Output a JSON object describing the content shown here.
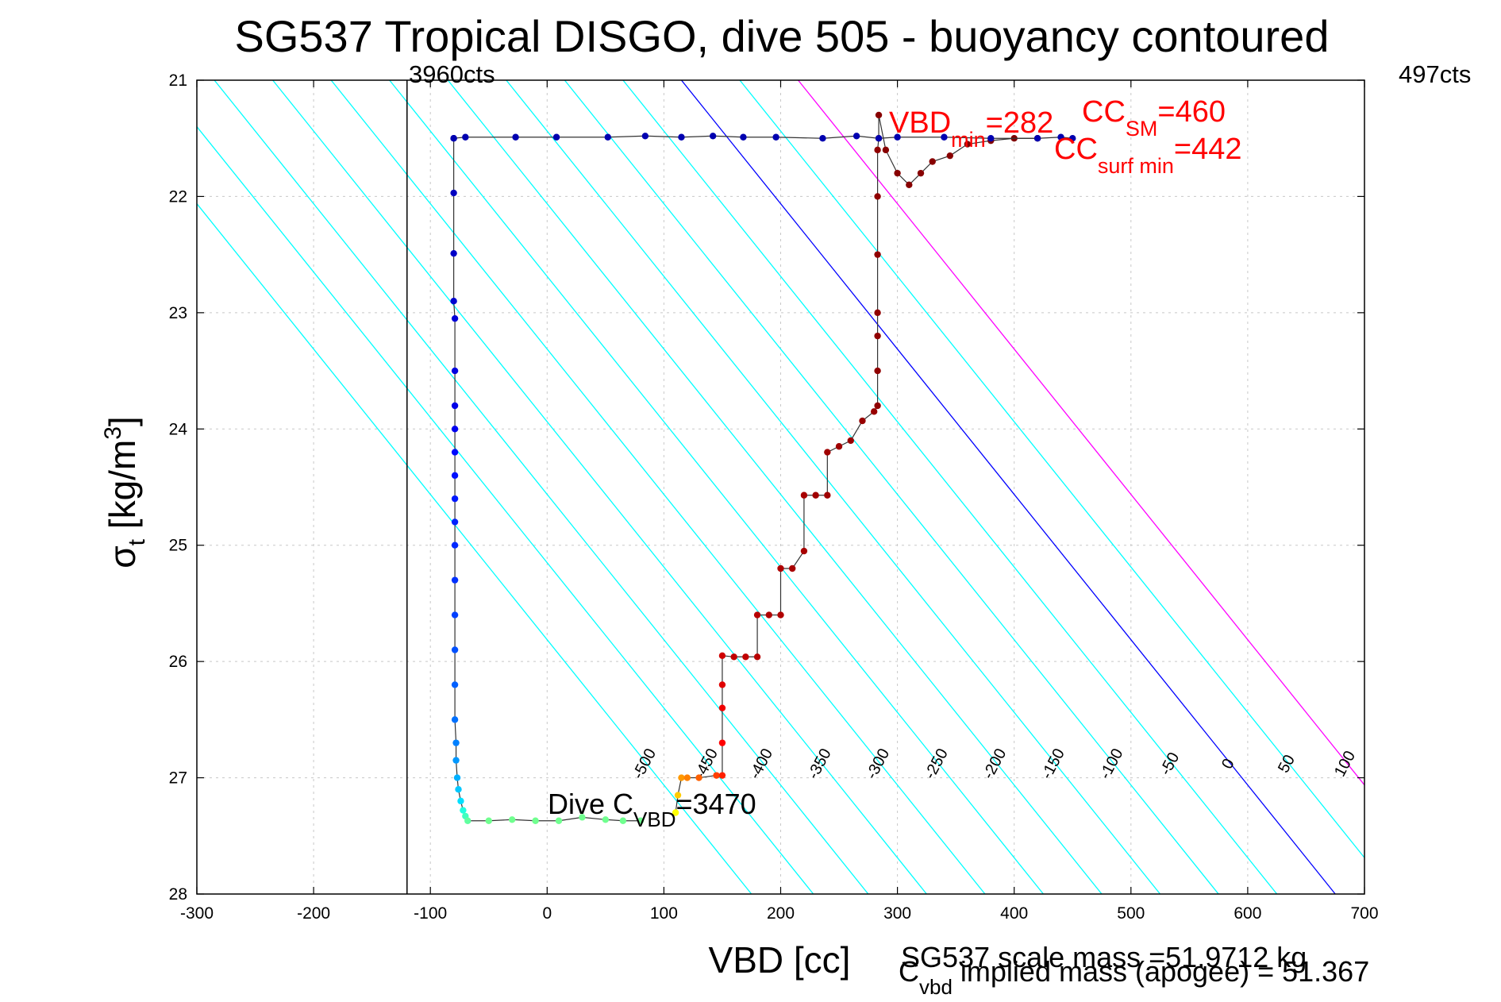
{
  "chart_data": {
    "type": "scatter",
    "title": "SG537 Tropical DISGO, dive 505 - buoyancy contoured",
    "xlabel": "VBD [cc]",
    "ylabel_main": "σ",
    "ylabel_sub": "t",
    "ylabel_rest": " [kg/m",
    "ylabel_sup": "3",
    "ylabel_end": "]",
    "xlim": [
      -300,
      700
    ],
    "ylim": [
      21,
      28
    ],
    "y_reversed": true,
    "grid": true,
    "x_ticks": [
      -300,
      -200,
      -100,
      0,
      100,
      200,
      300,
      400,
      500,
      600,
      700
    ],
    "y_ticks": [
      21,
      22,
      23,
      24,
      25,
      26,
      27,
      28
    ],
    "x_tick_labels": [
      "-300",
      "-200",
      "-100",
      "0",
      "100",
      "200",
      "300",
      "400",
      "500",
      "600",
      "700"
    ],
    "y_tick_labels": [
      "21",
      "22",
      "23",
      "24",
      "25",
      "26",
      "27",
      "28"
    ],
    "vertical_line_x": -120,
    "corner_left_label": "3960cts",
    "corner_right_label": "497cts",
    "contours": [
      {
        "label": "-500",
        "x27": 95,
        "color": "#00ffff"
      },
      {
        "label": "-450",
        "x27": 148,
        "color": "#00ffff"
      },
      {
        "label": "-400",
        "x27": 195,
        "color": "#00ffff"
      },
      {
        "label": "-350",
        "x27": 245,
        "color": "#00ffff"
      },
      {
        "label": "-300",
        "x27": 295,
        "color": "#00ffff"
      },
      {
        "label": "-250",
        "x27": 345,
        "color": "#00ffff"
      },
      {
        "label": "-200",
        "x27": 395,
        "color": "#00ffff"
      },
      {
        "label": "-150",
        "x27": 445,
        "color": "#00ffff"
      },
      {
        "label": "-100",
        "x27": 495,
        "color": "#00ffff"
      },
      {
        "label": "-50",
        "x27": 545,
        "color": "#00ffff"
      },
      {
        "label": "0",
        "x27": 595,
        "color": "#0000ff"
      },
      {
        "label": "50",
        "x27": 645,
        "color": "#00ffff"
      },
      {
        "label": "100",
        "x27": 695,
        "color": "#ff00ff"
      }
    ],
    "contour_slope_x_per_sigma": 80,
    "series": [
      {
        "color_role": "dive",
        "x": [
          -80,
          -80,
          -80,
          -80,
          -79,
          -79,
          -79,
          -79,
          -79,
          -79,
          -79,
          -79,
          -79,
          -79,
          -79,
          -79,
          -79,
          -79,
          -78,
          -78,
          -77,
          -76,
          -74,
          -72,
          -70,
          -68,
          -50,
          -30,
          -10,
          10,
          30,
          50,
          65,
          80
        ],
        "y": [
          21.5,
          21.97,
          22.49,
          22.9,
          23.05,
          23.5,
          23.8,
          24.0,
          24.2,
          24.4,
          24.6,
          24.8,
          25.0,
          25.3,
          25.6,
          25.9,
          26.2,
          26.5,
          26.7,
          26.85,
          27.0,
          27.1,
          27.2,
          27.28,
          27.33,
          27.37,
          27.37,
          27.36,
          27.37,
          27.37,
          27.34,
          27.36,
          27.37,
          27.37
        ],
        "colors": [
          "#0000b8",
          "#0000c0",
          "#0000c8",
          "#0000d0",
          "#0000d8",
          "#0000e0",
          "#0000e8",
          "#0000f0",
          "#0008ff",
          "#0010ff",
          "#0018ff",
          "#0020ff",
          "#0028ff",
          "#0030ff",
          "#0040ff",
          "#0050ff",
          "#0060ff",
          "#0070ff",
          "#0080ff",
          "#0098ff",
          "#00b0ff",
          "#00c8ff",
          "#00e0ff",
          "#20ffdf",
          "#40ffbf",
          "#60ff9f",
          "#70ff8f",
          "#70ff8f",
          "#70ff8f",
          "#70ff8f",
          "#70ff8f",
          "#70ff8f",
          "#70ff8f",
          "#70ff8f"
        ]
      },
      {
        "color_role": "climb",
        "x": [
          110,
          112,
          115,
          120,
          130,
          145,
          150,
          150,
          150,
          150,
          150,
          160,
          170,
          180,
          180,
          190,
          200,
          200,
          210,
          220,
          220,
          230,
          240,
          240,
          250,
          260,
          270,
          280,
          283,
          283,
          283,
          283,
          283,
          283,
          283,
          284,
          284,
          290,
          300,
          310,
          320,
          330,
          345,
          360,
          380,
          400,
          420
        ],
        "y": [
          27.3,
          27.15,
          27.0,
          27.0,
          27.0,
          26.98,
          26.98,
          26.7,
          26.4,
          26.2,
          25.95,
          25.96,
          25.96,
          25.96,
          25.6,
          25.6,
          25.6,
          25.2,
          25.2,
          25.05,
          24.57,
          24.57,
          24.57,
          24.2,
          24.15,
          24.1,
          23.93,
          23.85,
          23.8,
          23.5,
          23.2,
          23.0,
          22.5,
          22.0,
          21.6,
          21.5,
          21.3,
          21.6,
          21.8,
          21.9,
          21.8,
          21.7,
          21.65,
          21.55,
          21.52,
          21.5,
          21.5
        ],
        "colors": [
          "#ffff00",
          "#ffcc00",
          "#ff9900",
          "#ff8000",
          "#ff6000",
          "#ff4000",
          "#ff2000",
          "#ff0000",
          "#f00000",
          "#e00000",
          "#d00000",
          "#c00000",
          "#c00000",
          "#b80000",
          "#b80000",
          "#b00000",
          "#b00000",
          "#b00000",
          "#a80000",
          "#a80000",
          "#a80000",
          "#a00000",
          "#a00000",
          "#a00000",
          "#a00000",
          "#980000",
          "#980000",
          "#980000",
          "#900000",
          "#900000",
          "#900000",
          "#900000",
          "#900000",
          "#900000",
          "#900000",
          "#880000",
          "#880000",
          "#880000",
          "#880000",
          "#880000",
          "#880000",
          "#880000",
          "#880000",
          "#800000",
          "#800000",
          "#800000",
          "#800000"
        ]
      },
      {
        "color_role": "surface",
        "x": [
          -80,
          -70,
          -27,
          8,
          52,
          84,
          115,
          142,
          168,
          196,
          236,
          265,
          284,
          300,
          340,
          380,
          420,
          440,
          450
        ],
        "y": [
          21.5,
          21.49,
          21.49,
          21.49,
          21.49,
          21.48,
          21.49,
          21.48,
          21.49,
          21.49,
          21.5,
          21.48,
          21.5,
          21.49,
          21.49,
          21.5,
          21.5,
          21.49,
          21.5
        ],
        "colors": [
          "#0000b0",
          "#0000b0",
          "#0000b0",
          "#0000b0",
          "#0000b0",
          "#0000b0",
          "#0000b0",
          "#0000b0",
          "#0000b0",
          "#0000b0",
          "#0000b0",
          "#0000b0",
          "#0000b0",
          "#0000b0",
          "#0000b0",
          "#0000b0",
          "#0000b0",
          "#0000b0",
          "#0000b0"
        ]
      }
    ],
    "annotations": {
      "vbd_main": "VBD",
      "vbd_sub": "min",
      "vbd_val": "=282",
      "cc_sm_main": "CC",
      "cc_sm_sub": "SM",
      "cc_sm_val": "=460",
      "cc_surf_main": "CC",
      "cc_surf_sub": "surf min",
      "cc_surf_val": "=442",
      "dive_main": "Dive C",
      "dive_sub": "VBD",
      "dive_val": "=3470",
      "scale_mass": "SG537 scale mass =51.9712 kg",
      "implied_main": "C",
      "implied_sub": "vbd",
      "implied_rest": " implied mass (apogee) = 51.367"
    }
  }
}
